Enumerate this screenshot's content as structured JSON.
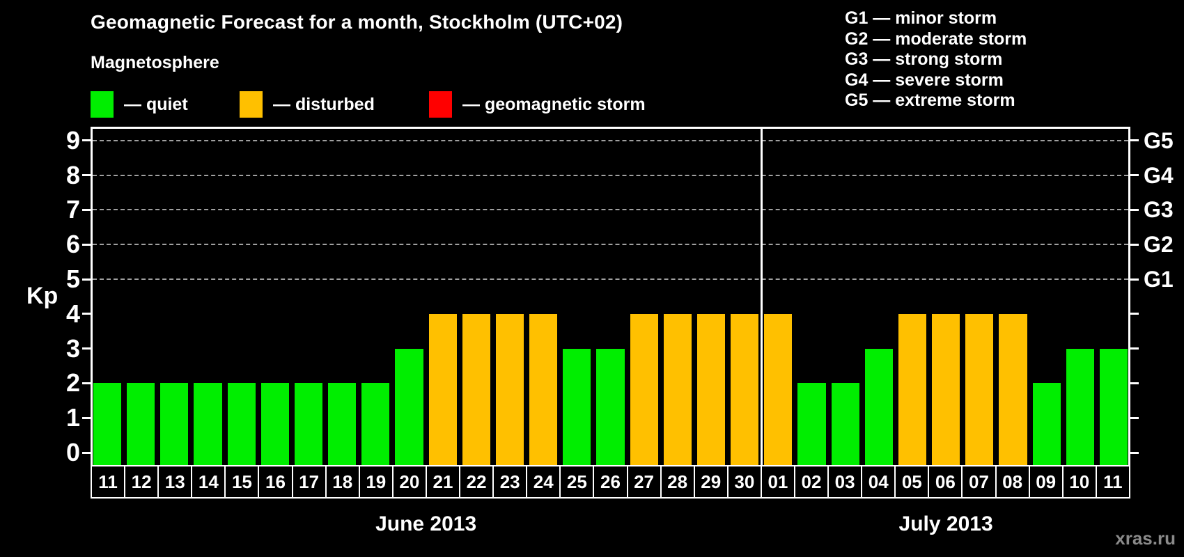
{
  "title": "Geomagnetic Forecast for a month, Stockholm (UTC+02)",
  "watermark": "xras.ru",
  "magnetosphere_legend": {
    "title": "Magnetosphere",
    "items": [
      {
        "state": "quiet",
        "label": "— quiet",
        "color": "#00ee00"
      },
      {
        "state": "disturbed",
        "label": "— disturbed",
        "color": "#ffc000"
      },
      {
        "state": "storm",
        "label": "— geomagnetic storm",
        "color": "#ff0000"
      }
    ]
  },
  "g_legend": {
    "items": [
      "G1 — minor storm",
      "G2 — moderate storm",
      "G3 — strong storm",
      "G4 — severe storm",
      "G5 — extreme storm"
    ]
  },
  "chart_data": {
    "type": "bar",
    "title": "Geomagnetic Forecast for a month, Stockholm (UTC+02)",
    "ylabel": "Kp",
    "xlabel": "",
    "ylim": [
      0,
      9
    ],
    "yticks": [
      0,
      1,
      2,
      3,
      4,
      5,
      6,
      7,
      8,
      9
    ],
    "grid": "horizontal dashed lines at Kp 5 to 9 only",
    "legend_position": "top",
    "right_axis_labels": [
      {
        "kp": 5,
        "label": "G1"
      },
      {
        "kp": 6,
        "label": "G2"
      },
      {
        "kp": 7,
        "label": "G3"
      },
      {
        "kp": 8,
        "label": "G4"
      },
      {
        "kp": 9,
        "label": "G5"
      }
    ],
    "state_colors": {
      "quiet": "#00ee00",
      "disturbed": "#ffc000",
      "storm": "#ff0000"
    },
    "months": [
      {
        "label": "June 2013",
        "days": [
          {
            "day": "11",
            "kp": 2,
            "state": "quiet"
          },
          {
            "day": "12",
            "kp": 2,
            "state": "quiet"
          },
          {
            "day": "13",
            "kp": 2,
            "state": "quiet"
          },
          {
            "day": "14",
            "kp": 2,
            "state": "quiet"
          },
          {
            "day": "15",
            "kp": 2,
            "state": "quiet"
          },
          {
            "day": "16",
            "kp": 2,
            "state": "quiet"
          },
          {
            "day": "17",
            "kp": 2,
            "state": "quiet"
          },
          {
            "day": "18",
            "kp": 2,
            "state": "quiet"
          },
          {
            "day": "19",
            "kp": 2,
            "state": "quiet"
          },
          {
            "day": "20",
            "kp": 3,
            "state": "quiet"
          },
          {
            "day": "21",
            "kp": 4,
            "state": "disturbed"
          },
          {
            "day": "22",
            "kp": 4,
            "state": "disturbed"
          },
          {
            "day": "23",
            "kp": 4,
            "state": "disturbed"
          },
          {
            "day": "24",
            "kp": 4,
            "state": "disturbed"
          },
          {
            "day": "25",
            "kp": 3,
            "state": "quiet"
          },
          {
            "day": "26",
            "kp": 3,
            "state": "quiet"
          },
          {
            "day": "27",
            "kp": 4,
            "state": "disturbed"
          },
          {
            "day": "28",
            "kp": 4,
            "state": "disturbed"
          },
          {
            "day": "29",
            "kp": 4,
            "state": "disturbed"
          },
          {
            "day": "30",
            "kp": 4,
            "state": "disturbed"
          }
        ]
      },
      {
        "label": "July 2013",
        "days": [
          {
            "day": "01",
            "kp": 4,
            "state": "disturbed"
          },
          {
            "day": "02",
            "kp": 2,
            "state": "quiet"
          },
          {
            "day": "03",
            "kp": 2,
            "state": "quiet"
          },
          {
            "day": "04",
            "kp": 3,
            "state": "quiet"
          },
          {
            "day": "05",
            "kp": 4,
            "state": "disturbed"
          },
          {
            "day": "06",
            "kp": 4,
            "state": "disturbed"
          },
          {
            "day": "07",
            "kp": 4,
            "state": "disturbed"
          },
          {
            "day": "08",
            "kp": 4,
            "state": "disturbed"
          },
          {
            "day": "09",
            "kp": 2,
            "state": "quiet"
          },
          {
            "day": "10",
            "kp": 3,
            "state": "quiet"
          },
          {
            "day": "11",
            "kp": 3,
            "state": "quiet"
          }
        ]
      }
    ]
  }
}
